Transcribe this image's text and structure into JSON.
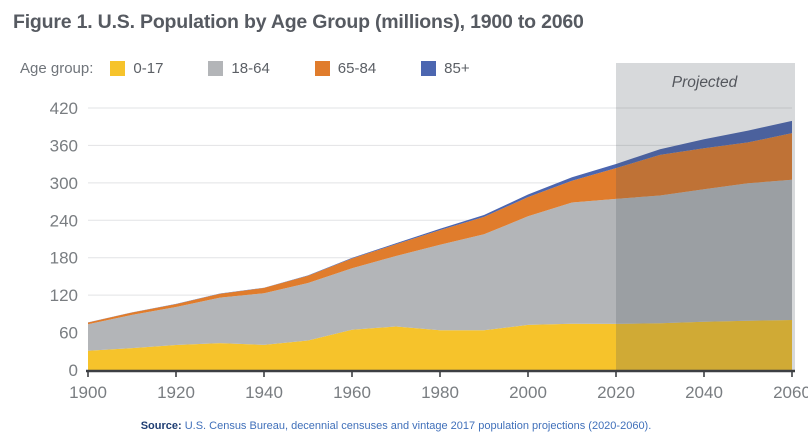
{
  "header": {
    "title": "Figure 1. U.S. Population by Age Group (millions), 1900 to 2060"
  },
  "legend": {
    "label": "Age group:"
  },
  "source": {
    "prefix": "Source:",
    "text": "U.S. Census Bureau, decennial censuses and vintage 2017 population projections (2020-2060)."
  },
  "chart_data": {
    "type": "area",
    "stacked": true,
    "title": "Figure 1. U.S. Population by Age Group (millions), 1900 to 2060",
    "xlabel": "",
    "ylabel": "",
    "x": [
      1900,
      1910,
      1920,
      1930,
      1940,
      1950,
      1960,
      1970,
      1980,
      1990,
      2000,
      2010,
      2020,
      2030,
      2040,
      2050,
      2060
    ],
    "x_ticks": [
      1900,
      1920,
      1940,
      1960,
      1980,
      2000,
      2020,
      2040,
      2060
    ],
    "y_ticks": [
      0,
      60,
      120,
      180,
      240,
      300,
      360,
      420
    ],
    "ylim": [
      0,
      420
    ],
    "grid": "horizontal",
    "grid_color": "#E2E3E5",
    "axis_color": "#3D3F43",
    "legend_position": "top-left",
    "series": [
      {
        "name": "0-17",
        "color": "#F6C32B",
        "values": [
          30.7,
          35.1,
          40.0,
          43.2,
          40.2,
          47.3,
          64.5,
          69.8,
          63.7,
          63.6,
          72.3,
          74.2,
          73.9,
          75.1,
          77.2,
          79.1,
          80.1
        ]
      },
      {
        "name": "18-64",
        "color": "#B3B5B8",
        "values": [
          42.5,
          53.3,
          61.0,
          72.8,
          82.8,
          92.1,
          98.7,
          113.0,
          137.2,
          153.9,
          174.1,
          194.3,
          200.4,
          204.6,
          212.5,
          220.2,
          225.0
        ]
      },
      {
        "name": "65-84",
        "color": "#E07C2C",
        "values": [
          3.0,
          3.8,
          4.7,
          6.3,
          8.6,
          11.7,
          15.6,
          18.9,
          23.3,
          28.0,
          30.7,
          34.9,
          49.3,
          65.1,
          65.7,
          65.5,
          74.6
        ]
      },
      {
        "name": "85+",
        "color": "#4C66B0",
        "values": [
          0.1,
          0.2,
          0.2,
          0.3,
          0.4,
          0.6,
          0.9,
          1.5,
          2.2,
          3.0,
          4.2,
          5.5,
          6.7,
          9.1,
          14.4,
          19.0,
          19.7
        ]
      }
    ],
    "projection": {
      "label": "Projected",
      "start_x": 2020,
      "overlay_color": "rgba(73, 80, 92, 0.22)"
    }
  }
}
